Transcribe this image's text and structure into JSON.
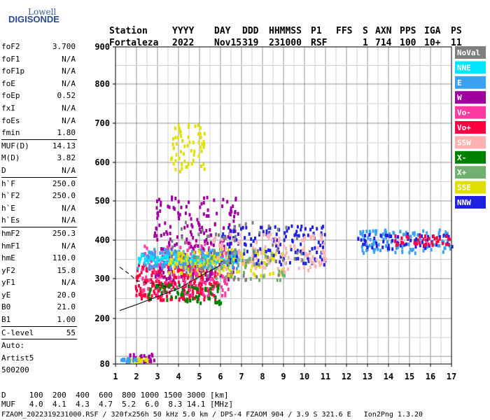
{
  "logo": {
    "line1": "Lowell",
    "line2": "DIGISONDE"
  },
  "header": {
    "labels": [
      "Station",
      "YYYY",
      "DAY",
      "DDD",
      "HHMMSS",
      "P1",
      "FFS",
      "S",
      "AXN",
      "PPS",
      "IGA",
      "PS"
    ],
    "values": [
      "Fortaleza",
      "2022",
      "Nov15",
      "319",
      "231000",
      "RSF",
      "",
      "1",
      "714",
      "100",
      "10+",
      "11"
    ]
  },
  "params": [
    {
      "k": "foF2",
      "v": "3.700"
    },
    {
      "k": "foF1",
      "v": "N/A"
    },
    {
      "k": "foF1p",
      "v": "N/A"
    },
    {
      "k": "foE",
      "v": "N/A"
    },
    {
      "k": "foEp",
      "v": "0.52"
    },
    {
      "k": "fxI",
      "v": "N/A"
    },
    {
      "k": "foEs",
      "v": "N/A"
    },
    {
      "k": "fmin",
      "v": "1.80"
    },
    {
      "sep": true
    },
    {
      "k": "MUF(D)",
      "v": "14.13"
    },
    {
      "k": "M(D)",
      "v": "3.82"
    },
    {
      "k": "D",
      "v": "N/A"
    },
    {
      "sep": true
    },
    {
      "k": "h`F",
      "v": "250.0"
    },
    {
      "k": "h`F2",
      "v": "250.0"
    },
    {
      "k": "h`E",
      "v": "N/A"
    },
    {
      "k": "h`Es",
      "v": "N/A"
    },
    {
      "sep": true
    },
    {
      "k": "hmF2",
      "v": "250.3"
    },
    {
      "k": "hmF1",
      "v": "N/A"
    },
    {
      "k": "hmE",
      "v": "110.0"
    },
    {
      "k": "yF2",
      "v": "15.8"
    },
    {
      "k": "yF1",
      "v": "N/A"
    },
    {
      "k": "yE",
      "v": "20.0"
    },
    {
      "k": "B0",
      "v": "21.0"
    },
    {
      "k": "B1",
      "v": "1.00"
    },
    {
      "sep": true
    },
    {
      "k": "C-level",
      "v": "55"
    },
    {
      "sep": true
    },
    {
      "k": "Auto:",
      "v": ""
    },
    {
      "k": "Artist5",
      "v": ""
    },
    {
      "k": "500200",
      "v": ""
    }
  ],
  "legend": [
    {
      "label": "NoVal",
      "color": "#7f7f7f"
    },
    {
      "label": "NNE",
      "color": "#00e5ff"
    },
    {
      "label": "E",
      "color": "#3aa0f0"
    },
    {
      "label": "W",
      "color": "#a000a0"
    },
    {
      "label": "Vo-",
      "color": "#ff3aa0"
    },
    {
      "label": "Vo+",
      "color": "#ff0040"
    },
    {
      "label": "SSW",
      "color": "#ffb0b0"
    },
    {
      "label": "X-",
      "color": "#008000"
    },
    {
      "label": "X+",
      "color": "#70b070"
    },
    {
      "label": "SSE",
      "color": "#e0e000"
    },
    {
      "label": "NNW",
      "color": "#2020e0"
    }
  ],
  "footer": {
    "d_row": "D     100  200  400  600  800 1000 1500 3000 [km]",
    "muf_row": "MUF   4.0  4.1  4.3  4.7  5.2  6.0  8.3 14.1 [MHz]",
    "info": "FZAOM_2022319231000.RSF / 320fx256h 50 kHz 5.0 km / DPS-4 FZAOM 904 / 3.9 S 321.6 E   Ion2Png 1.3.20"
  },
  "chart_data": {
    "type": "scatter",
    "x_ticks": [
      "1",
      "2",
      "3",
      "4",
      "5",
      "6",
      "7",
      "8",
      "9",
      "10",
      "11",
      "12",
      "13",
      "14",
      "15",
      "16",
      "17"
    ],
    "y_ticks": [
      "80",
      "200",
      "300",
      "400",
      "500",
      "600",
      "700",
      "800",
      "900"
    ],
    "xlim": [
      1,
      17
    ],
    "ylim": [
      80,
      900
    ],
    "grid": true,
    "legend_position": "right",
    "clusters": [
      {
        "color": "#ff0040",
        "x": [
          1.9,
          5.8
        ],
        "y": [
          250,
          340
        ],
        "n": 260
      },
      {
        "color": "#ff3aa0",
        "x": [
          2.2,
          6.5
        ],
        "y": [
          260,
          400
        ],
        "n": 180
      },
      {
        "color": "#a000a0",
        "x": [
          2.8,
          6.8
        ],
        "y": [
          300,
          520
        ],
        "n": 200
      },
      {
        "color": "#3aa0f0",
        "x": [
          2.0,
          6.8
        ],
        "y": [
          330,
          380
        ],
        "n": 180
      },
      {
        "color": "#00e5ff",
        "x": [
          2.0,
          6.8
        ],
        "y": [
          345,
          365
        ],
        "n": 90
      },
      {
        "color": "#e0e000",
        "x": [
          3.5,
          9.0
        ],
        "y": [
          310,
          380
        ],
        "n": 140
      },
      {
        "color": "#2020e0",
        "x": [
          6.0,
          11.0
        ],
        "y": [
          340,
          440
        ],
        "n": 140
      },
      {
        "color": "#ffb0b0",
        "x": [
          5.5,
          11.0
        ],
        "y": [
          320,
          420
        ],
        "n": 120
      },
      {
        "color": "#008000",
        "x": [
          2.5,
          6.0
        ],
        "y": [
          240,
          290
        ],
        "n": 70
      },
      {
        "color": "#70b070",
        "x": [
          4.5,
          9.0
        ],
        "y": [
          300,
          380
        ],
        "n": 60
      },
      {
        "color": "#7f7f7f",
        "x": [
          3.0,
          10.0
        ],
        "y": [
          300,
          450
        ],
        "n": 60
      },
      {
        "color": "#3aa0f0",
        "x": [
          12.5,
          17.0
        ],
        "y": [
          370,
          430
        ],
        "n": 110
      },
      {
        "color": "#2020e0",
        "x": [
          12.5,
          17.0
        ],
        "y": [
          380,
          420
        ],
        "n": 60
      },
      {
        "color": "#ff0040",
        "x": [
          14.0,
          17.0
        ],
        "y": [
          390,
          415
        ],
        "n": 40
      },
      {
        "color": "#e0e000",
        "x": [
          3.6,
          5.2
        ],
        "y": [
          580,
          700
        ],
        "n": 60
      },
      {
        "color": "#a000a0",
        "x": [
          1.5,
          2.8
        ],
        "y": [
          90,
          110
        ],
        "n": 30
      },
      {
        "color": "#e0e000",
        "x": [
          1.5,
          2.5
        ],
        "y": [
          88,
          100
        ],
        "n": 20
      },
      {
        "color": "#3aa0f0",
        "x": [
          1.2,
          2.0
        ],
        "y": [
          88,
          98
        ],
        "n": 15
      }
    ],
    "trace_lines": [
      {
        "style": "dashed",
        "x": [
          1.2,
          1.7,
          2.0,
          2.5,
          3.0,
          3.4
        ],
        "y": [
          330,
          310,
          295,
          290,
          285,
          280
        ]
      },
      {
        "style": "solid",
        "x": [
          1.2,
          2.0,
          3.0,
          4.0,
          5.0,
          6.0
        ],
        "y": [
          220,
          235,
          255,
          275,
          305,
          335
        ]
      }
    ]
  }
}
